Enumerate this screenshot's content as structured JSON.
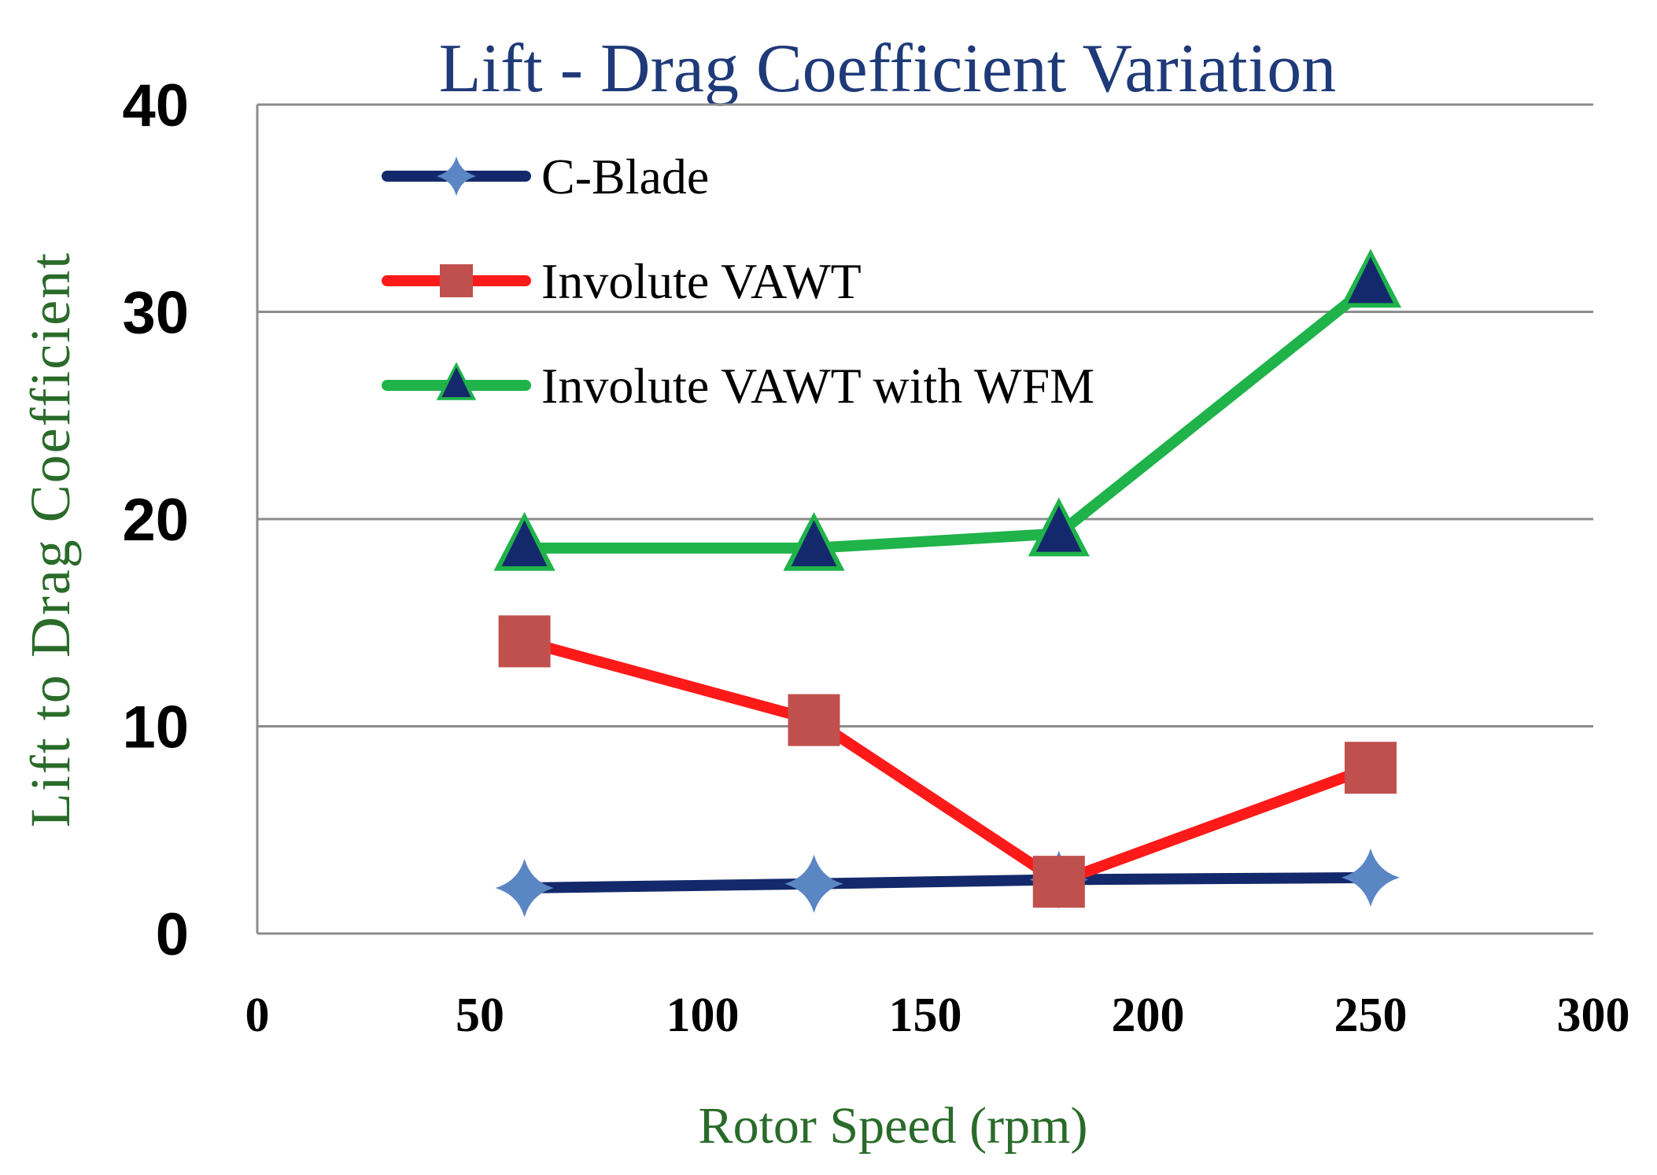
{
  "chart_data": {
    "type": "line",
    "title": "Lift - Drag Coefficient  Variation",
    "xlabel": "Rotor Speed (rpm)",
    "ylabel": "Lift to Drag Coefficient",
    "xlim": [
      0,
      300
    ],
    "ylim": [
      0,
      40
    ],
    "xticks": [
      "0",
      "50",
      "100",
      "150",
      "200",
      "250",
      "300"
    ],
    "yticks": [
      "0",
      "10",
      "20",
      "30",
      "40"
    ],
    "grid": "horizontal",
    "legend_position": "top-left",
    "series": [
      {
        "name": "C-Blade",
        "color": "#14296b",
        "marker": "diamond",
        "marker_color": "#5b86c4",
        "points": [
          [
            60,
            2.2
          ],
          [
            125,
            2.4
          ],
          [
            180,
            2.6
          ],
          [
            250,
            2.7
          ]
        ]
      },
      {
        "name": "Involute VAWT",
        "color": "#ff1a1a",
        "marker": "square",
        "marker_color": "#c0504d",
        "points": [
          [
            60,
            14.1
          ],
          [
            125,
            10.3
          ],
          [
            180,
            2.5
          ],
          [
            250,
            8.0
          ]
        ]
      },
      {
        "name": "Involute VAWT with WFM",
        "color": "#1fb34a",
        "marker": "triangle",
        "marker_color": "#14296b",
        "points": [
          [
            60,
            18.6
          ],
          [
            125,
            18.6
          ],
          [
            180,
            19.3
          ],
          [
            250,
            31.3
          ]
        ]
      }
    ]
  }
}
